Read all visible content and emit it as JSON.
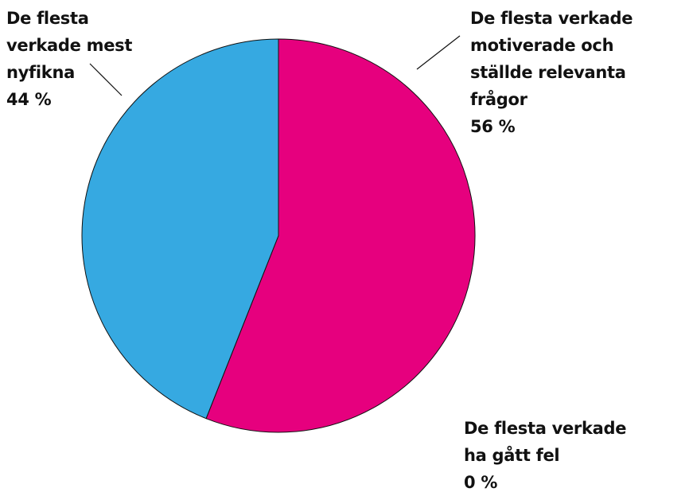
{
  "chart_data": {
    "type": "pie",
    "categories": [
      "De flesta verkade motiverade och ställde relevanta frågor",
      "De flesta verkade mest nyfikna",
      "De flesta verkade ha gått fel"
    ],
    "values": [
      56,
      44,
      0
    ],
    "value_labels": [
      "56 %",
      "44 %",
      "0 %"
    ],
    "colors": [
      "#e6007e",
      "#36a9e1",
      "#7fbf3f"
    ]
  }
}
